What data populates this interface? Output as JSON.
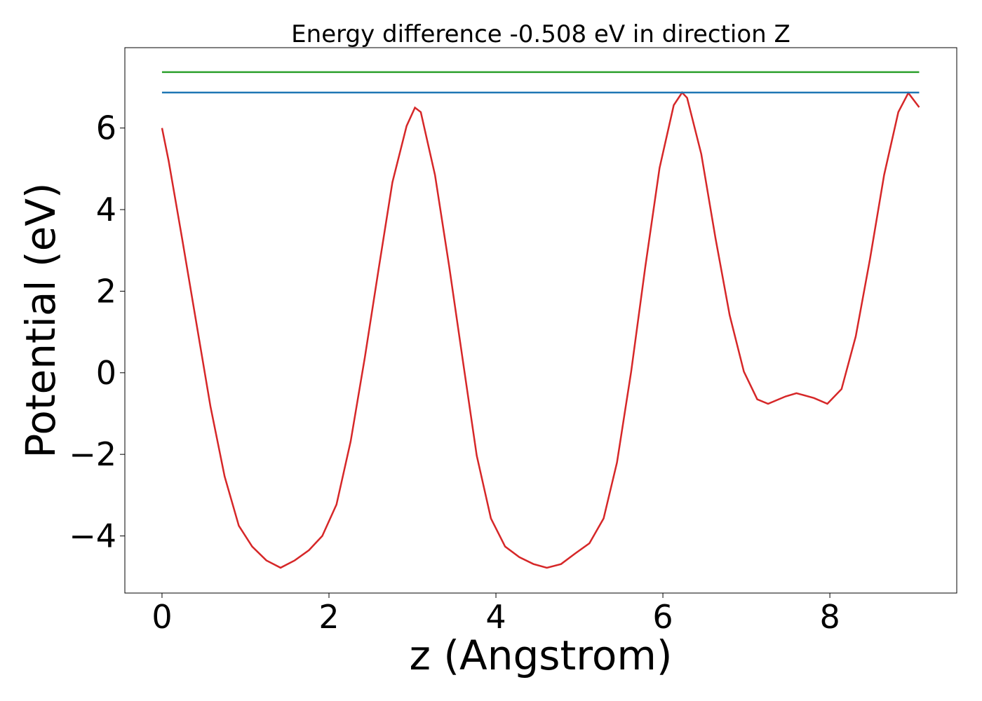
{
  "chart_data": {
    "type": "line",
    "title": "Energy difference -0.508 eV in direction Z",
    "xlabel": "z (Angstrom)",
    "ylabel": "Potential (eV)",
    "xlim": [
      -0.445,
      9.52
    ],
    "ylim": [
      -5.4,
      7.97
    ],
    "xticks": [
      0,
      2,
      4,
      6,
      8
    ],
    "yticks": [
      {
        "value": -4,
        "label": "−4"
      },
      {
        "value": -2,
        "label": "−2"
      },
      0,
      2,
      4,
      6
    ],
    "grid": false,
    "series": [
      {
        "color": "#d62728",
        "x": [
          0,
          0.08,
          0.24,
          0.41,
          0.58,
          0.75,
          0.92,
          1.08,
          1.25,
          1.42,
          1.59,
          1.76,
          1.92,
          2.09,
          2.26,
          2.43,
          2.6,
          2.76,
          2.93,
          3.03,
          3.1,
          3.27,
          3.44,
          3.61,
          3.77,
          3.94,
          4.11,
          4.28,
          4.45,
          4.61,
          4.78,
          4.95,
          5.12,
          5.29,
          5.45,
          5.62,
          5.79,
          5.96,
          6.13,
          6.23,
          6.29,
          6.46,
          6.63,
          6.8,
          6.97,
          7.13,
          7.26,
          7.47,
          7.6,
          7.81,
          7.97,
          8.14,
          8.31,
          8.48,
          8.65,
          8.82,
          8.94,
          9.07
        ],
        "values": [
          6.0,
          5.19,
          3.3,
          1.24,
          -0.82,
          -2.54,
          -3.75,
          -4.26,
          -4.6,
          -4.78,
          -4.6,
          -4.35,
          -4.0,
          -3.23,
          -1.68,
          0.38,
          2.61,
          4.67,
          6.05,
          6.5,
          6.39,
          4.85,
          2.61,
          0.21,
          -2.03,
          -3.57,
          -4.26,
          -4.52,
          -4.69,
          -4.78,
          -4.69,
          -4.43,
          -4.18,
          -3.57,
          -2.2,
          0.03,
          2.61,
          5.02,
          6.56,
          6.87,
          6.74,
          5.36,
          3.3,
          1.41,
          0.03,
          -0.65,
          -0.76,
          -0.58,
          -0.5,
          -0.62,
          -0.76,
          -0.4,
          0.89,
          2.78,
          4.85,
          6.39,
          6.86,
          6.51
        ]
      },
      {
        "color": "#1f77b4",
        "x": [
          0,
          9.07
        ],
        "values": [
          6.87,
          6.87
        ]
      },
      {
        "color": "#2ca02c",
        "x": [
          0,
          9.07
        ],
        "values": [
          7.37,
          7.37
        ]
      }
    ]
  }
}
